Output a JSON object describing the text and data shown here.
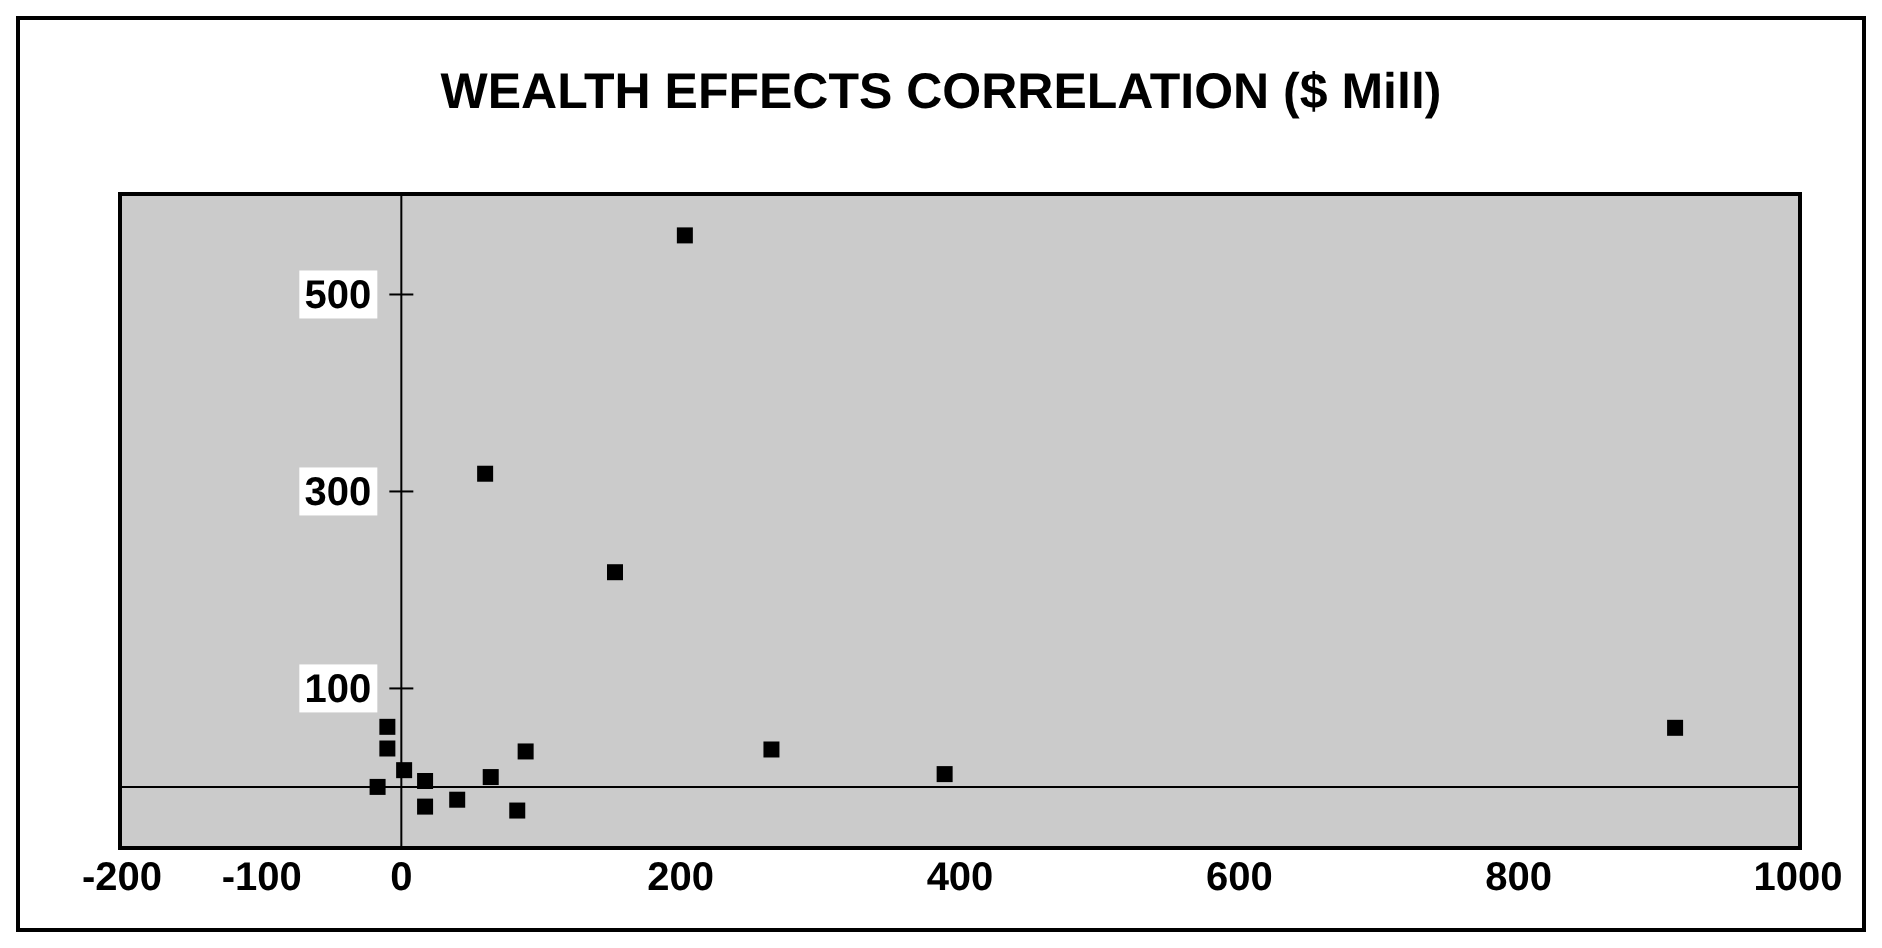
{
  "chart_data": {
    "type": "scatter",
    "title": "WEALTH EFFECTS CORRELATION ($ Mill)",
    "x": [
      203,
      60,
      153,
      265,
      389,
      912,
      89,
      64,
      83,
      40,
      17,
      17,
      2,
      -17,
      -10,
      -10
    ],
    "series": [
      {
        "color": "#000000",
        "values": [
          560,
          318,
          218,
          38,
          13,
          60,
          36,
          10,
          -24,
          -13,
          -20,
          6,
          17,
          0,
          61,
          39
        ]
      }
    ],
    "xlim": [
      -200,
      1000
    ],
    "xticks": [
      -200,
      -100,
      0,
      200,
      400,
      600,
      800,
      1000
    ],
    "ylim": [
      -60,
      600
    ],
    "yticks": [
      100,
      300,
      500
    ],
    "grid": false,
    "legend": false,
    "marker": "square"
  }
}
